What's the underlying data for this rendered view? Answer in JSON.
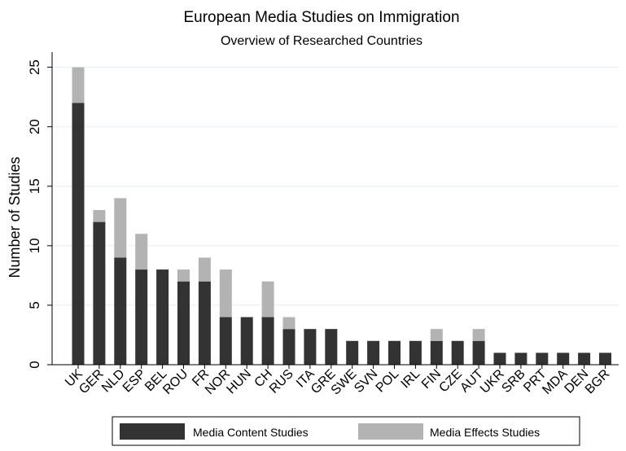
{
  "chart_data": {
    "type": "bar",
    "stacked": true,
    "title": "European Media Studies on Immigration",
    "subtitle": "Overview of Researched Countries",
    "xlabel": "",
    "ylabel": "Number of Studies",
    "ylim": [
      0,
      26
    ],
    "yticks": [
      0,
      5,
      10,
      15,
      20,
      25
    ],
    "grid": true,
    "legend_position": "bottom",
    "categories": [
      "UK",
      "GER",
      "NLD",
      "ESP",
      "BEL",
      "ROU",
      "FR",
      "NOR",
      "HUN",
      "CH",
      "RUS",
      "ITA",
      "GRE",
      "SWE",
      "SVN",
      "POL",
      "IRL",
      "FIN",
      "CZE",
      "AUT",
      "UKR",
      "SRB",
      "PRT",
      "MDA",
      "DEN",
      "BGR"
    ],
    "series": [
      {
        "name": "Media Content Studies",
        "color": "#333333",
        "values": [
          22,
          12,
          9,
          8,
          8,
          7,
          7,
          4,
          4,
          4,
          3,
          3,
          3,
          2,
          2,
          2,
          2,
          2,
          2,
          2,
          1,
          1,
          1,
          1,
          1,
          1
        ]
      },
      {
        "name": "Media Effects Studies",
        "color": "#b3b3b3",
        "values": [
          3,
          1,
          5,
          3,
          0,
          1,
          2,
          4,
          0,
          3,
          1,
          0,
          0,
          0,
          0,
          0,
          0,
          1,
          0,
          1,
          0,
          0,
          0,
          0,
          0,
          0
        ]
      }
    ]
  }
}
